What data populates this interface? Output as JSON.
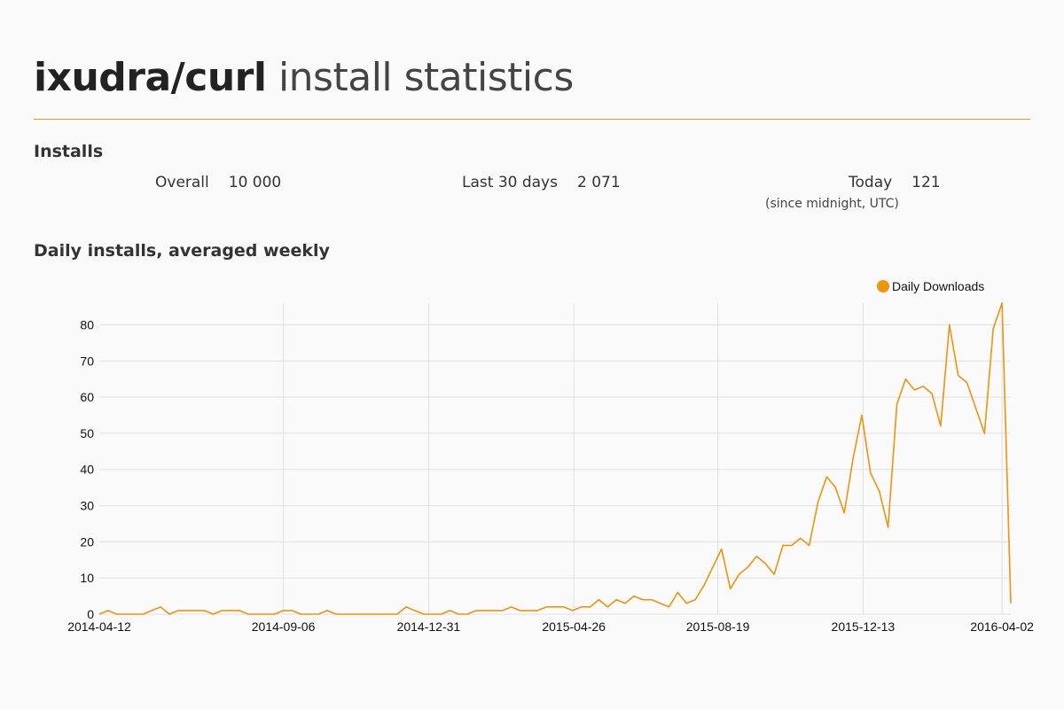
{
  "header": {
    "package_name": "ixudra/curl",
    "title_suffix": "install statistics"
  },
  "installs": {
    "heading": "Installs",
    "overall_label": "Overall",
    "overall_value": "10 000",
    "last30_label": "Last 30 days",
    "last30_value": "2 071",
    "today_label": "Today",
    "today_value": "121",
    "today_note": "(since midnight, UTC)"
  },
  "daily": {
    "heading": "Daily installs, averaged weekly"
  },
  "colors": {
    "accent": "#e39c1f",
    "series": "#f0930f",
    "grid": "#e0e0e0"
  },
  "chart_data": {
    "type": "line",
    "title": "",
    "xlabel": "",
    "ylabel": "",
    "ylim": [
      0,
      86
    ],
    "yticks": [
      0,
      10,
      20,
      30,
      40,
      50,
      60,
      70,
      80
    ],
    "x_tick_labels": [
      "2014-04-12",
      "2014-09-06",
      "2014-12-31",
      "2015-04-26",
      "2015-08-19",
      "2015-12-13",
      "2016-04-02"
    ],
    "x_start": "2014-04-12",
    "x_step_days": 7,
    "grid": true,
    "legend_position": "top-right",
    "series": [
      {
        "name": "Daily Downloads",
        "color": "#f0930f",
        "values": [
          0,
          1,
          0,
          0,
          0,
          0,
          1,
          2,
          0,
          1,
          1,
          1,
          1,
          0,
          1,
          1,
          1,
          0,
          0,
          0,
          0,
          1,
          1,
          0,
          0,
          0,
          1,
          0,
          0,
          0,
          0,
          0,
          0,
          0,
          0,
          2,
          1,
          0,
          0,
          0,
          1,
          0,
          0,
          1,
          1,
          1,
          1,
          2,
          1,
          1,
          1,
          2,
          2,
          2,
          1,
          2,
          2,
          4,
          2,
          4,
          3,
          5,
          4,
          4,
          3,
          2,
          6,
          3,
          4,
          8,
          13,
          18,
          7,
          11,
          13,
          16,
          14,
          11,
          19,
          19,
          21,
          19,
          31,
          38,
          35,
          28,
          43,
          55,
          39,
          34,
          24,
          58,
          65,
          62,
          63,
          61,
          52,
          80,
          66,
          64,
          57,
          50,
          79,
          86,
          3
        ]
      }
    ]
  }
}
